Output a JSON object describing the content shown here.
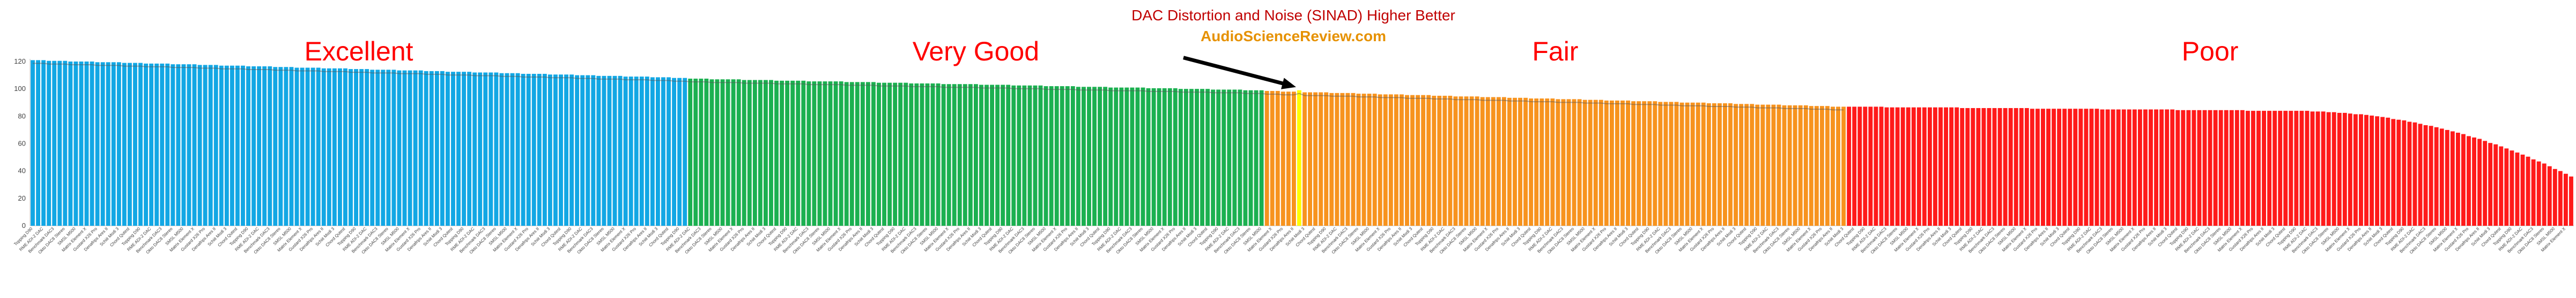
{
  "chart_data": {
    "type": "bar",
    "title": "DAC Distortion and Noise (SINAD) Higher Better",
    "subtitle": "AudioScienceReview.com",
    "xlabel": "",
    "ylabel": "",
    "ylim": [
      0,
      120
    ],
    "yticks": [
      0,
      20,
      40,
      60,
      80,
      100,
      120
    ],
    "grid": false,
    "tiers": [
      {
        "name": "Excellent",
        "color": "#12a7e4",
        "count": 122
      },
      {
        "name": "Very Good",
        "color": "#1bb050",
        "count": 107
      },
      {
        "name": "Fair",
        "color": "#f7931e",
        "count": 108
      },
      {
        "name": "Poor",
        "color": "#ff1a1a",
        "count": 135
      }
    ],
    "highlight": {
      "index": 235,
      "color": "#ffff00",
      "value": 99
    },
    "tier_ranges": [
      {
        "tier": "Excellent",
        "from": 121,
        "to": 108
      },
      {
        "tier": "Very Good",
        "from": 107.5,
        "to": 99
      },
      {
        "tier": "Fair",
        "from": 98.5,
        "to": 87
      },
      {
        "tier": "Poor",
        "from": 87,
        "to": 84,
        "tail_to": 36
      }
    ],
    "x_label_samples": [
      "Topping D90",
      "RME ADI-2 DAC",
      "Benchmark DAC3",
      "Okto DAC8 Stereo",
      "SMSL M500",
      "Matrix Element X",
      "Gustard X26 Pro",
      "Denafrips Ares II",
      "Schiit Modi 3",
      "Chord Qutest"
    ]
  }
}
